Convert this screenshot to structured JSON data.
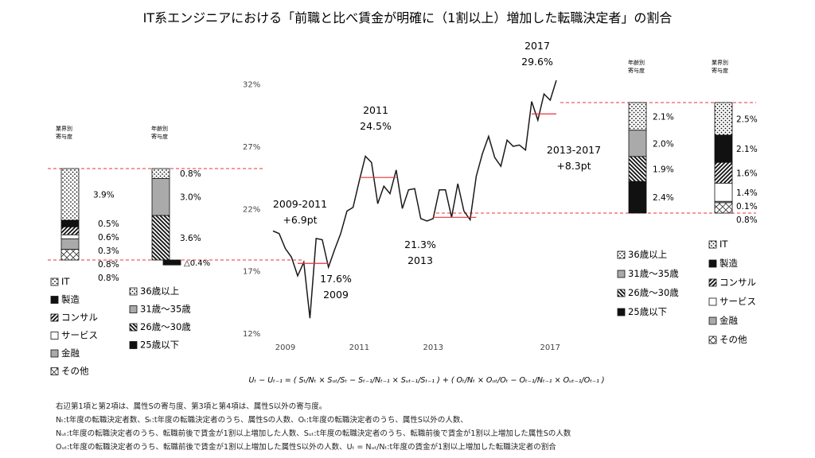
{
  "title": "IT系エンジニアにおける「前職と比べ賃金が明確に（1割以上）増加した転職決定者」の割合",
  "chart_data": {
    "type": "line",
    "ylim": [
      12,
      33
    ],
    "yticks": [
      "12%",
      "17%",
      "22%",
      "27%",
      "32%"
    ],
    "xtick_labels": [
      "2009",
      "2011",
      "2013",
      "2017"
    ],
    "series": [
      {
        "values": [
          20.2,
          20.0,
          18.8,
          18.1,
          16.6,
          17.7,
          13.2,
          19.6,
          19.5,
          17.3,
          18.7,
          20.0,
          21.8,
          22.1,
          24.2,
          26.2,
          25.7,
          22.4,
          23.8,
          23.2,
          25.1,
          22.0,
          23.5,
          23.6,
          21.2,
          21.0,
          21.2,
          23.5,
          23.5,
          21.3,
          24.0,
          21.8,
          21.1,
          24.6,
          26.4,
          27.8,
          26.1,
          25.4,
          27.5,
          27.0,
          27.1,
          26.7,
          30.6,
          29.1,
          31.2,
          30.7,
          32.3
        ]
      }
    ],
    "annual_averages": [
      {
        "year": 2009,
        "value": 17.6
      },
      {
        "year": 2011,
        "value": 24.5
      },
      {
        "year": 2013,
        "value": 21.3
      },
      {
        "year": 2017,
        "value": 29.6
      }
    ],
    "annotations": [
      {
        "id": "a2009",
        "lines": [
          "17.6%",
          "2009"
        ]
      },
      {
        "id": "a2011",
        "lines": [
          "2011",
          "24.5%"
        ]
      },
      {
        "id": "a2013",
        "lines": [
          "21.3%",
          "2013"
        ]
      },
      {
        "id": "a2017",
        "lines": [
          "2017",
          "29.6%"
        ]
      },
      {
        "id": "d0911",
        "lines": [
          "2009-2011",
          "+6.9pt"
        ]
      },
      {
        "id": "d1317",
        "lines": [
          "2013-2017",
          "+8.3pt"
        ]
      }
    ],
    "decompositions": [
      {
        "id": "ind0911",
        "label": "業界別寄与度",
        "segments": [
          {
            "cat": "IT",
            "value": 3.9,
            "label": "3.9%"
          },
          {
            "cat": "製造",
            "value": 0.5,
            "label": "0.5%"
          },
          {
            "cat": "コンサル",
            "value": 0.6,
            "label": "0.6%"
          },
          {
            "cat": "サービス",
            "value": 0.3,
            "label": "0.3%"
          },
          {
            "cat": "金融",
            "value": 0.8,
            "label": "0.8%"
          },
          {
            "cat": "その他",
            "value": 0.8,
            "label": "0.8%"
          }
        ]
      },
      {
        "id": "age0911",
        "label": "年齢別寄与度",
        "segments": [
          {
            "cat": "36歳以上",
            "value": 0.8,
            "label": "0.8%"
          },
          {
            "cat": "31歳～35歳",
            "value": 3.0,
            "label": "3.0%"
          },
          {
            "cat": "26歳～30歳",
            "value": 3.6,
            "label": "3.6%"
          },
          {
            "cat": "25歳以下",
            "value": -0.4,
            "label": "△0.4%"
          }
        ]
      },
      {
        "id": "age1317",
        "label": "年齢別寄与度",
        "segments": [
          {
            "cat": "36歳以上",
            "value": 2.1,
            "label": "2.1%"
          },
          {
            "cat": "31歳～35歳",
            "value": 2.0,
            "label": "2.0%"
          },
          {
            "cat": "26歳～30歳",
            "value": 1.9,
            "label": "1.9%"
          },
          {
            "cat": "25歳以下",
            "value": 2.4,
            "label": "2.4%"
          }
        ]
      },
      {
        "id": "ind1317",
        "label": "業界別寄与度",
        "segments": [
          {
            "cat": "IT",
            "value": 2.5,
            "label": "2.5%"
          },
          {
            "cat": "製造",
            "value": 2.1,
            "label": "2.1%"
          },
          {
            "cat": "コンサル",
            "value": 1.6,
            "label": "1.6%"
          },
          {
            "cat": "サービス",
            "value": 1.4,
            "label": "1.4%"
          },
          {
            "cat": "金融",
            "value": 0.1,
            "label": "0.1%"
          },
          {
            "cat": "その他",
            "value": 0.8,
            "label": "0.8%"
          }
        ]
      }
    ],
    "legend_industry": [
      "IT",
      "製造",
      "コンサル",
      "サービス",
      "金融",
      "その他"
    ],
    "legend_age": [
      "36歳以上",
      "31歳～35歳",
      "26歳～30歳",
      "25歳以下"
    ]
  },
  "formula": "Uₜ − Uₜ₋₁ = ( Sₜ/Nₜ × Sᵤₜ/Sₜ − Sₜ₋₁/Nₜ₋₁ × Sᵤₜ₋₁/Sₜ₋₁ ) + ( Oₜ/Nₜ × Oᵤₜ/Oₜ − Oₜ₋₁/Nₜ₋₁ × Oᵤₜ₋₁/Oₜ₋₁ )",
  "notes": [
    "右辺第1項と第2項は、属性Sの寄与度、第3項と第4項は、属性S以外の寄与度。",
    "Nₜ:t年度の転職決定者数、Sₜ:t年度の転職決定者のうち、属性Sの人数、Oₜ:t年度の転職決定者のうち、属性S以外の人数、",
    "Nᵤₜ:t年度の転職決定者のうち、転職前後で賃金が1割以上増加した人数、Sᵤₜ:t年度の転職決定者のうち、転職前後で賃金が1割以上増加した属性Sの人数",
    "Oᵤₜ:t年度の転職決定者のうち、転職前後で賃金が1割以上増加した属性S以外の人数、Uₜ = Nᵤₜ/Nₜ:t年度の賃金が1割以上増加した転職決定者の割合"
  ],
  "colors": {
    "accent": "#e8333a",
    "guide": "#e8333a",
    "line": "#1a1a1a"
  }
}
